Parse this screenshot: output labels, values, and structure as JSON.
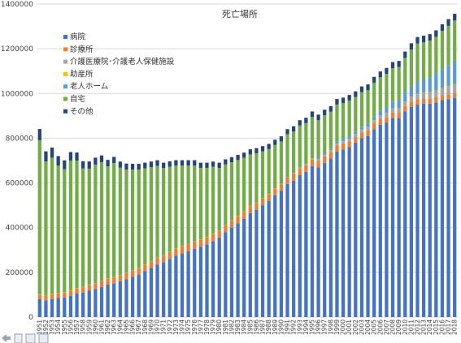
{
  "colors": {
    "byoin": "#4472C4",
    "shinryojo": "#ED7D31",
    "kaigo": "#A5A5A5",
    "josanjo": "#FFC000",
    "rojin_home": "#5B9BD5",
    "jitaku": "#70AD47",
    "sonota": "#264478"
  },
  "chart_data": {
    "type": "bar",
    "stacked": true,
    "title": "死亡場所",
    "xlabel": "",
    "ylabel": "",
    "ylim": [
      0,
      1400000
    ],
    "yticks": [
      0,
      200000,
      400000,
      600000,
      800000,
      1000000,
      1200000,
      1400000
    ],
    "ytick_labels": [
      "0",
      "200000",
      "400000",
      "600000",
      "800000",
      "1000000",
      "1200000",
      "1400000"
    ],
    "grid": true,
    "legend_position": "top-left",
    "categories": [
      "1951",
      "1952",
      "1953",
      "1954",
      "1955",
      "1956",
      "1957",
      "1958",
      "1959",
      "1960",
      "1961",
      "1962",
      "1963",
      "1964",
      "1965",
      "1966",
      "1967",
      "1968",
      "1969",
      "1970",
      "1971",
      "1972",
      "1973",
      "1974",
      "1975",
      "1976",
      "1977",
      "1978",
      "1979",
      "1980",
      "1981",
      "1982",
      "1983",
      "1984",
      "1985",
      "1986",
      "1987",
      "1988",
      "1989",
      "1990",
      "1991",
      "1992",
      "1993",
      "1994",
      "1995",
      "1996",
      "1997",
      "1998",
      "1999",
      "2000",
      "2001",
      "2002",
      "2003",
      "2004",
      "2005",
      "2006",
      "2007",
      "2008",
      "2009",
      "2010",
      "2011",
      "2012",
      "2013",
      "2014",
      "2015",
      "2016",
      "2017",
      "2018"
    ],
    "series": [
      {
        "name": "病院",
        "color_key": "byoin",
        "values": [
          80000,
          75000,
          80000,
          85000,
          88000,
          95000,
          105000,
          110000,
          118000,
          125000,
          135000,
          145000,
          150000,
          160000,
          170000,
          180000,
          190000,
          205000,
          220000,
          235000,
          245000,
          260000,
          275000,
          285000,
          295000,
          305000,
          315000,
          325000,
          340000,
          355000,
          380000,
          400000,
          420000,
          440000,
          465000,
          480000,
          500000,
          520000,
          545000,
          565000,
          595000,
          610000,
          635000,
          650000,
          675000,
          670000,
          690000,
          710000,
          740000,
          750000,
          760000,
          780000,
          800000,
          810000,
          840000,
          860000,
          870000,
          890000,
          890000,
          920000,
          940000,
          950000,
          955000,
          955000,
          960000,
          970000,
          975000,
          980000
        ]
      },
      {
        "name": "診療所",
        "color_key": "shinryojo",
        "values": [
          20000,
          20000,
          22000,
          22000,
          22000,
          24000,
          24000,
          24000,
          25000,
          26000,
          27000,
          28000,
          28000,
          28000,
          29000,
          29000,
          29000,
          30000,
          30000,
          31000,
          31000,
          32000,
          32000,
          32000,
          32000,
          32000,
          32000,
          32000,
          32000,
          32000,
          32000,
          32000,
          32000,
          32000,
          32000,
          32000,
          31000,
          31000,
          30000,
          30000,
          30000,
          30000,
          30000,
          29000,
          29000,
          28000,
          28000,
          27000,
          27000,
          26000,
          26000,
          25000,
          25000,
          25000,
          25000,
          25000,
          25000,
          25000,
          24000,
          24000,
          24000,
          24000,
          23000,
          23000,
          23000,
          22000,
          22000,
          21000
        ]
      },
      {
        "name": "介護医療院･介護老人保健施設",
        "color_key": "kaigo",
        "values": [
          0,
          0,
          0,
          0,
          0,
          0,
          0,
          0,
          0,
          0,
          0,
          0,
          0,
          0,
          0,
          0,
          0,
          0,
          0,
          0,
          0,
          0,
          0,
          0,
          0,
          0,
          0,
          0,
          0,
          0,
          0,
          0,
          0,
          0,
          0,
          0,
          0,
          0,
          0,
          0,
          1000,
          2000,
          3000,
          4000,
          5000,
          6000,
          7000,
          8000,
          9000,
          10000,
          11000,
          12000,
          13000,
          14000,
          15000,
          16000,
          17000,
          18000,
          19000,
          20000,
          22000,
          24000,
          26000,
          28000,
          30000,
          32000,
          35000,
          40000
        ]
      },
      {
        "name": "助産所",
        "color_key": "josanjo",
        "values": [
          1000,
          1000,
          1000,
          1000,
          1000,
          1000,
          1000,
          1000,
          1000,
          1000,
          1000,
          1000,
          500,
          500,
          500,
          500,
          500,
          500,
          500,
          500,
          500,
          500,
          500,
          500,
          500,
          500,
          500,
          500,
          500,
          500,
          500,
          500,
          500,
          500,
          500,
          500,
          500,
          500,
          500,
          500,
          500,
          500,
          500,
          500,
          500,
          500,
          500,
          500,
          500,
          500,
          500,
          500,
          500,
          500,
          500,
          500,
          500,
          500,
          500,
          500,
          500,
          500,
          500,
          500,
          500,
          500,
          500,
          500
        ]
      },
      {
        "name": "老人ホーム",
        "color_key": "rojin_home",
        "values": [
          0,
          0,
          0,
          0,
          0,
          0,
          0,
          0,
          0,
          0,
          0,
          0,
          0,
          0,
          0,
          0,
          0,
          0,
          0,
          0,
          0,
          0,
          0,
          0,
          0,
          0,
          0,
          0,
          0,
          0,
          0,
          0,
          0,
          0,
          0,
          0,
          0,
          0,
          0,
          0,
          1000,
          2000,
          3000,
          4000,
          5000,
          6000,
          7000,
          8000,
          9000,
          10000,
          11000,
          12000,
          13000,
          15000,
          18000,
          21000,
          25000,
          30000,
          35000,
          40000,
          45000,
          55000,
          60000,
          65000,
          75000,
          85000,
          95000,
          105000
        ]
      },
      {
        "name": "自宅",
        "color_key": "jitaku",
        "values": [
          690000,
          600000,
          610000,
          570000,
          550000,
          580000,
          570000,
          530000,
          520000,
          530000,
          530000,
          500000,
          510000,
          480000,
          460000,
          450000,
          440000,
          430000,
          420000,
          410000,
          390000,
          380000,
          370000,
          360000,
          350000,
          340000,
          320000,
          310000,
          300000,
          280000,
          270000,
          260000,
          250000,
          240000,
          230000,
          220000,
          210000,
          200000,
          195000,
          190000,
          190000,
          185000,
          185000,
          180000,
          180000,
          170000,
          170000,
          165000,
          165000,
          160000,
          160000,
          155000,
          155000,
          150000,
          150000,
          150000,
          150000,
          150000,
          150000,
          155000,
          165000,
          170000,
          165000,
          165000,
          165000,
          170000,
          175000,
          180000
        ]
      },
      {
        "name": "その他",
        "color_key": "sonota",
        "values": [
          50000,
          45000,
          45000,
          42000,
          40000,
          38000,
          36000,
          32000,
          32000,
          31000,
          30000,
          29000,
          28000,
          27000,
          27000,
          26000,
          26000,
          25000,
          25000,
          25000,
          24000,
          24000,
          24000,
          24000,
          24000,
          24000,
          23000,
          23000,
          23000,
          23000,
          23000,
          23000,
          23000,
          23000,
          23000,
          23000,
          23000,
          23000,
          23000,
          23000,
          23000,
          24000,
          24000,
          24000,
          25000,
          25000,
          25000,
          25000,
          25000,
          25000,
          25000,
          25000,
          25000,
          26000,
          26000,
          26000,
          27000,
          27000,
          27000,
          28000,
          28000,
          29000,
          29000,
          29000,
          29000,
          30000,
          30000,
          30000
        ]
      }
    ]
  }
}
